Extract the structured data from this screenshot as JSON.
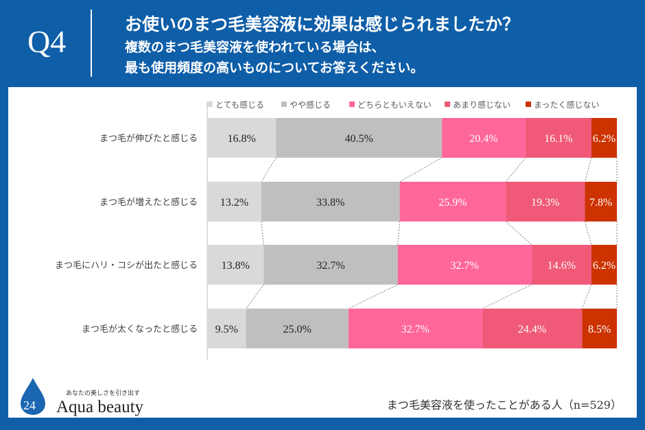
{
  "header": {
    "q": "Q4",
    "title": "お使いのまつ毛美容液に効果は感じられましたか？",
    "sub1": "複数のまつ毛美容液を使われている場合は、",
    "sub2": "最も使用頻度の高いものについてお答えください。"
  },
  "footer": {
    "note": "まつ毛美容液を使ったことがある人（n=529）",
    "logo_tagline": "あなたの美しさを引き出す",
    "logo_number": "24",
    "logo_text": "Aqua beauty"
  },
  "chart_data": {
    "type": "bar",
    "orientation": "horizontal",
    "stacked": "100%",
    "categories": [
      "まつ毛が伸びたと感じる",
      "まつ毛が増えたと感じる",
      "まつ毛にハリ・コシが出たと感じる",
      "まつ毛が太くなったと感じる"
    ],
    "series": [
      {
        "name": "とても感じる",
        "color": "#d9d9d9",
        "values": [
          16.8,
          13.2,
          13.8,
          9.5
        ]
      },
      {
        "name": "やや感じる",
        "color": "#bfbfbf",
        "values": [
          40.5,
          33.8,
          32.7,
          25.0
        ]
      },
      {
        "name": "どちらともいえない",
        "color": "#ff6699",
        "values": [
          20.4,
          25.9,
          32.7,
          32.7
        ]
      },
      {
        "name": "あまり感じない",
        "color": "#f05a78",
        "values": [
          16.1,
          19.3,
          14.6,
          24.4
        ]
      },
      {
        "name": "まったく感じない",
        "color": "#cc3300",
        "values": [
          6.2,
          7.8,
          6.2,
          8.5
        ]
      }
    ],
    "legend": "top",
    "grid": false
  }
}
